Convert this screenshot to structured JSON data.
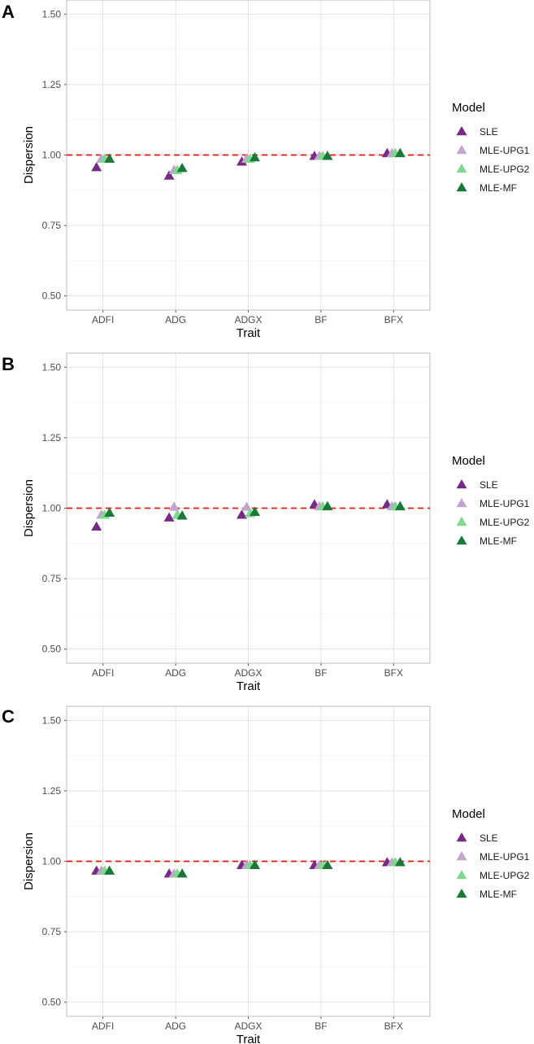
{
  "chart_data": [
    {
      "panel": "A",
      "type": "scatter",
      "categories": [
        "ADFI",
        "ADG",
        "ADGX",
        "BF",
        "BFX"
      ],
      "xlabel": "Trait",
      "ylabel": "Dispersion",
      "ylim": [
        0.45,
        1.55
      ],
      "yticks": [
        "0.50",
        "0.75",
        "1.00",
        "1.25",
        "1.50"
      ],
      "reference_line": 1.0,
      "grid": true,
      "legend_title": "Model",
      "legend_position": "right",
      "series": [
        {
          "name": "SLE",
          "color": "#762A83",
          "values": [
            0.955,
            0.925,
            0.975,
            0.995,
            1.005
          ]
        },
        {
          "name": "MLE-UPG1",
          "color": "#C2A5CF",
          "values": [
            0.985,
            0.945,
            0.985,
            0.995,
            1.005
          ]
        },
        {
          "name": "MLE-UPG2",
          "color": "#7FD88F",
          "values": [
            0.985,
            0.945,
            0.985,
            0.995,
            1.005
          ]
        },
        {
          "name": "MLE-MF",
          "color": "#1B7837",
          "values": [
            0.985,
            0.952,
            0.99,
            0.995,
            1.005
          ]
        }
      ]
    },
    {
      "panel": "B",
      "type": "scatter",
      "categories": [
        "ADFI",
        "ADG",
        "ADGX",
        "BF",
        "BFX"
      ],
      "xlabel": "Trait",
      "ylabel": "Dispersion",
      "ylim": [
        0.45,
        1.55
      ],
      "yticks": [
        "0.50",
        "0.75",
        "1.00",
        "1.25",
        "1.50"
      ],
      "reference_line": 1.0,
      "grid": true,
      "legend_title": "Model",
      "legend_position": "right",
      "series": [
        {
          "name": "SLE",
          "color": "#762A83",
          "values": [
            0.933,
            0.965,
            0.975,
            1.012,
            1.012
          ]
        },
        {
          "name": "MLE-UPG1",
          "color": "#C2A5CF",
          "values": [
            0.975,
            1.003,
            1.003,
            1.005,
            1.005
          ]
        },
        {
          "name": "MLE-UPG2",
          "color": "#7FD88F",
          "values": [
            0.975,
            0.975,
            0.98,
            1.005,
            1.005
          ]
        },
        {
          "name": "MLE-MF",
          "color": "#1B7837",
          "values": [
            0.982,
            0.972,
            0.985,
            1.005,
            1.005
          ]
        }
      ]
    },
    {
      "panel": "C",
      "type": "scatter",
      "categories": [
        "ADFI",
        "ADG",
        "ADGX",
        "BF",
        "BFX"
      ],
      "xlabel": "Trait",
      "ylabel": "Dispersion",
      "ylim": [
        0.45,
        1.55
      ],
      "yticks": [
        "0.50",
        "0.75",
        "1.00",
        "1.25",
        "1.50"
      ],
      "reference_line": 1.0,
      "grid": true,
      "legend_title": "Model",
      "legend_position": "right",
      "series": [
        {
          "name": "SLE",
          "color": "#762A83",
          "values": [
            0.965,
            0.955,
            0.985,
            0.985,
            0.995
          ]
        },
        {
          "name": "MLE-UPG1",
          "color": "#C2A5CF",
          "values": [
            0.965,
            0.955,
            0.985,
            0.985,
            0.995
          ]
        },
        {
          "name": "MLE-UPG2",
          "color": "#7FD88F",
          "values": [
            0.965,
            0.955,
            0.985,
            0.985,
            0.995
          ]
        },
        {
          "name": "MLE-MF",
          "color": "#1B7837",
          "values": [
            0.965,
            0.955,
            0.985,
            0.985,
            0.995
          ]
        }
      ]
    }
  ]
}
